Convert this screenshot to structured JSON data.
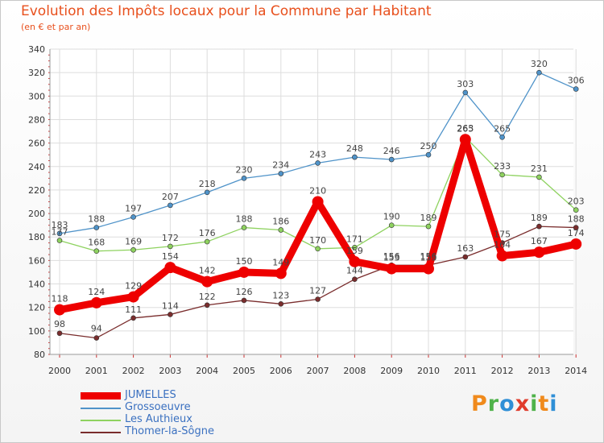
{
  "header": {
    "title": "Evolution des Impôts locaux pour la Commune par Habitant",
    "subtitle": "(en € et par an)"
  },
  "brand": {
    "letters": [
      "P",
      "r",
      "o",
      "x",
      "i",
      "t",
      "i"
    ],
    "colors": [
      "#f08a1c",
      "#4fb24a",
      "#2f8fd6",
      "#e03c2c",
      "#4fb24a",
      "#f08a1c",
      "#2f8fd6"
    ]
  },
  "chart_data": {
    "type": "line",
    "title": "Evolution des Impôts locaux pour la Commune par Habitant",
    "subtitle": "(en € et par an)",
    "xlabel": "",
    "ylabel": "",
    "ylim": [
      80,
      340
    ],
    "ytick_step": 20,
    "grid": true,
    "legend_position": "bottom-left",
    "categories": [
      "2000",
      "2001",
      "2002",
      "2003",
      "2004",
      "2005",
      "2006",
      "2007",
      "2008",
      "2009",
      "2010",
      "2011",
      "2012",
      "2013",
      "2014"
    ],
    "series": [
      {
        "name": "JUMELLES",
        "color": "#ee0000",
        "emphasis": true,
        "values": [
          118,
          124,
          129,
          154,
          142,
          150,
          149,
          210,
          159,
          153,
          153,
          263,
          164,
          167,
          174
        ],
        "labels": [
          "118",
          "124",
          "129",
          "154",
          "142",
          "150",
          "149",
          "210",
          "159",
          "153",
          "153",
          "263",
          "164",
          "167",
          "174"
        ]
      },
      {
        "name": "Grossoeuvre",
        "color": "#4f93c9",
        "emphasis": false,
        "values": [
          183,
          188,
          197,
          207,
          218,
          230,
          234,
          243,
          248,
          246,
          250,
          303,
          265,
          320,
          306
        ],
        "labels": [
          "183",
          "188",
          "197",
          "207",
          "218",
          "230",
          "234",
          "243",
          "248",
          "246",
          "250",
          "303",
          "265",
          "320",
          "306"
        ]
      },
      {
        "name": "Les Authieux",
        "color": "#8ed25f",
        "emphasis": false,
        "values": [
          177,
          168,
          169,
          172,
          176,
          188,
          186,
          170,
          171,
          190,
          189,
          265,
          233,
          231,
          203
        ],
        "labels": [
          "177",
          "168",
          "169",
          "172",
          "176",
          "188",
          "186",
          "170",
          "171",
          "190",
          "189",
          "265",
          "233",
          "231",
          "203"
        ]
      },
      {
        "name": "Thomer-la-Sôgne",
        "color": "#7a2d2d",
        "emphasis": false,
        "values": [
          98,
          94,
          111,
          114,
          122,
          126,
          123,
          127,
          144,
          156,
          156,
          163,
          175,
          189,
          188
        ],
        "labels": [
          "98",
          "94",
          "111",
          "114",
          "122",
          "126",
          "123",
          "127",
          "144",
          "156",
          "156",
          "163",
          "175",
          "189",
          "188"
        ]
      }
    ]
  }
}
